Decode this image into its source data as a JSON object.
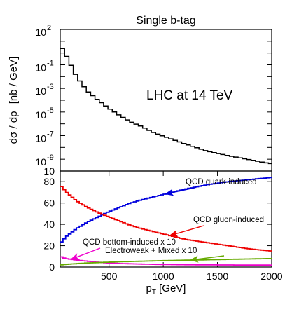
{
  "chart_data": [
    {
      "type": "line",
      "title": "Single b-tag",
      "ylabel": "dσ / dp_T   [nb / GeV]",
      "ylabel_parts": {
        "main": "dσ / dp",
        "sub": "T",
        "units": "[nb / GeV]"
      },
      "xlim": [
        50,
        2000
      ],
      "ylog": true,
      "ylim_exponents": [
        -10,
        2
      ],
      "ytick_labels": [
        {
          "base": "10",
          "exp": "2"
        },
        {
          "base": "10",
          "exp": "-1"
        },
        {
          "base": "10",
          "exp": "-3"
        },
        {
          "base": "10",
          "exp": "-5"
        },
        {
          "base": "10",
          "exp": "-7"
        },
        {
          "base": "10",
          "exp": "-9"
        }
      ],
      "ytick_label_exponents": [
        2,
        -1,
        -3,
        -5,
        -7,
        -9
      ],
      "annotation": "LHC at 14 TeV",
      "series": [
        {
          "style": "step",
          "color": "#000000",
          "x": [
            50,
            100,
            200,
            300,
            400,
            500,
            600,
            700,
            800,
            900,
            1000,
            1200,
            1400,
            1600,
            1800,
            2000
          ],
          "y": [
            5.0,
            0.8,
            0.01,
            0.0006,
            0.0001,
            2e-05,
            5e-06,
            1.5e-06,
            6e-07,
            2e-07,
            9e-08,
            2e-08,
            5e-09,
            2e-09,
            9e-10,
            4e-10
          ]
        }
      ]
    },
    {
      "type": "line",
      "xlabel": "p_T  [GeV]",
      "xlabel_parts": {
        "main": "p",
        "sub": "T",
        "units": "[GeV]"
      },
      "xlim": [
        50,
        2000
      ],
      "ylim": [
        0,
        90
      ],
      "xticks": [
        500,
        1000,
        1500,
        2000
      ],
      "xtick_labels": [
        "500",
        "1000",
        "1500",
        "2000"
      ],
      "yticks": [
        0,
        20,
        40,
        60,
        80
      ],
      "ytick_labels": [
        "0",
        "20",
        "40",
        "60",
        "80"
      ],
      "series": [
        {
          "label": "QCD quark-induced",
          "color": "#0000dd",
          "arrow_color": "#0000dd",
          "x": [
            50,
            100,
            200,
            300,
            400,
            500,
            600,
            700,
            800,
            1000,
            1200,
            1400,
            1600,
            1800,
            2000
          ],
          "y": [
            22,
            28,
            36,
            42,
            47,
            52,
            56,
            60,
            63,
            68,
            73,
            77,
            80,
            82,
            84
          ]
        },
        {
          "label": "QCD gluon-induced",
          "color": "#ee0000",
          "arrow_color": "#ee0000",
          "x": [
            50,
            100,
            200,
            300,
            400,
            500,
            600,
            700,
            800,
            1000,
            1200,
            1400,
            1600,
            1800,
            2000
          ],
          "y": [
            77,
            71,
            62,
            56,
            51,
            47,
            43,
            39,
            36,
            31,
            26,
            23,
            20,
            17,
            15
          ]
        },
        {
          "label": "QCD bottom-induced x 10",
          "color": "#ee00cc",
          "arrow_color": "#ee00cc",
          "x": [
            50,
            100,
            200,
            300,
            400,
            500,
            600,
            800,
            1000,
            1200,
            1500,
            2000
          ],
          "y": [
            10,
            8,
            6.5,
            5.5,
            4.5,
            3.8,
            3.3,
            2.8,
            2.4,
            2.2,
            2.0,
            1.8
          ]
        },
        {
          "label": "Electroweak + Mixed x 10",
          "color": "#66aa00",
          "arrow_color": "#66aa00",
          "x": [
            50,
            100,
            200,
            300,
            400,
            500,
            600,
            800,
            1000,
            1200,
            1500,
            2000
          ],
          "y": [
            2,
            2.5,
            3.2,
            3.8,
            4.2,
            4.6,
            5.0,
            5.5,
            6.0,
            6.4,
            7.0,
            8.0
          ]
        }
      ]
    }
  ]
}
